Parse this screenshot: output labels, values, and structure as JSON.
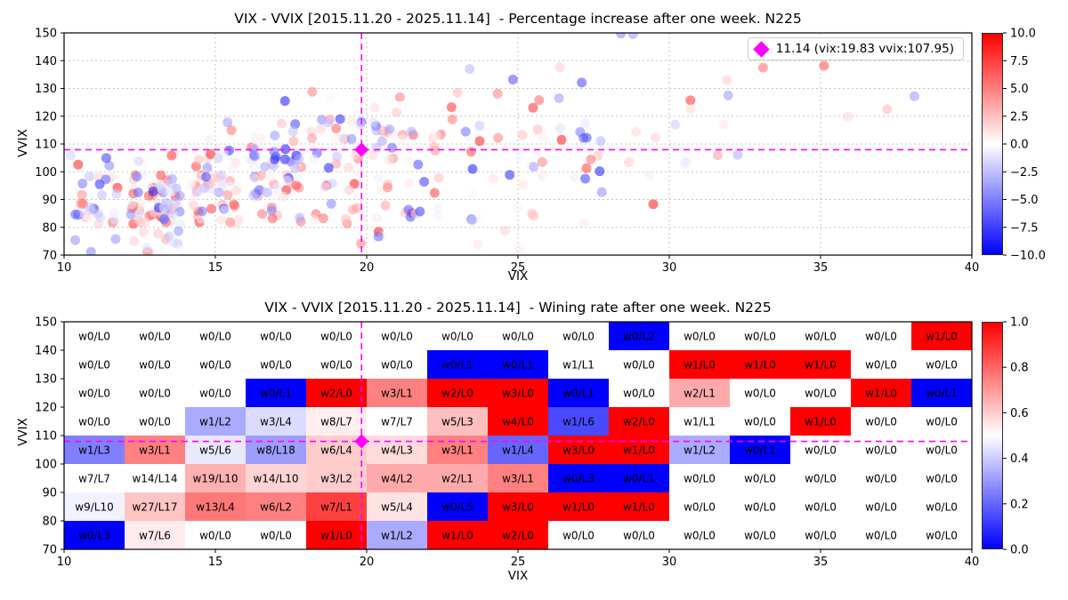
{
  "figure": {
    "background": "#ffffff",
    "accent_magenta": "#ff00ff",
    "grid_color": "#c3c3c3",
    "spine_color": "#000000"
  },
  "top_chart": {
    "title": "VIX - VVIX [2015.11.20 - 2025.11.14]  - Percentage increase after one week. N225",
    "xlabel": "VIX",
    "ylabel": "VVIX",
    "legend": {
      "label": "11.14 (vix:19.83 vvix:107.95)",
      "marker": "magenta-diamond"
    }
  },
  "bottom_chart": {
    "title": "VIX - VVIX [2015.11.20 - 2025.11.14]  - Wining rate after one week. N225",
    "xlabel": "VIX",
    "ylabel": "VVIX"
  },
  "chart_data": [
    {
      "type": "scatter",
      "title": "VIX - VVIX [2015.11.20 - 2025.11.14]  - Percentage increase after one week. N225",
      "xlabel": "VIX",
      "ylabel": "VVIX",
      "xlim": [
        10,
        40
      ],
      "ylim": [
        70,
        150
      ],
      "xticks": [
        10,
        15,
        20,
        25,
        30,
        35,
        40
      ],
      "yticks": [
        70,
        80,
        90,
        100,
        110,
        120,
        130,
        140,
        150
      ],
      "grid": true,
      "point_alpha": 0.55,
      "point_radius": 5.5,
      "colormap": "bwr",
      "colorbar": {
        "min": -10,
        "max": 10,
        "ticks": [
          "10.0",
          "7.5",
          "5.0",
          "2.5",
          "0.0",
          "−2.5",
          "−5.0",
          "−7.5",
          "−10.0"
        ]
      },
      "legend": {
        "label": "11.14 (vix:19.83 vvix:107.95)",
        "marker": "magenta-diamond",
        "position": "upper right"
      },
      "crosshair": {
        "vix": 19.83,
        "vvix": 107.95,
        "style": "magenta dashed",
        "marker": "magenta-diamond"
      },
      "density_note": "point counts per 2x10 (VIX x VVIX) bin equal w+L of the winning-rate table below; color sign follows w (red, positive %) vs L (blue, negative %)",
      "highlight_points": [
        [
          17.3,
          125.5,
          -9
        ],
        [
          28.4,
          149.8,
          -5
        ],
        [
          28.8,
          149.6,
          -4
        ],
        [
          23.4,
          137.0,
          -3
        ],
        [
          25.7,
          125.8,
          6
        ],
        [
          33.1,
          137.5,
          6
        ],
        [
          31.9,
          133.0,
          2
        ],
        [
          31.95,
          127.5,
          -4
        ],
        [
          30.7,
          125.7,
          8
        ],
        [
          30.7,
          122.5,
          1.5
        ],
        [
          38.0,
          146.0,
          2
        ],
        [
          38.1,
          127.2,
          -4
        ],
        [
          37.2,
          122.5,
          3
        ],
        [
          35.9,
          119.9,
          1.5
        ],
        [
          30.2,
          117.0,
          -2
        ],
        [
          28.9,
          114.4,
          1.5
        ],
        [
          23.5,
          101.0,
          -9
        ],
        [
          21.7,
          102.6,
          -7
        ],
        [
          21.9,
          96.4,
          -8
        ],
        [
          27.7,
          100.2,
          -9
        ],
        [
          13.2,
          83.8,
          9
        ],
        [
          16.2,
          108.8,
          7
        ],
        [
          20.5,
          114.8,
          6
        ],
        [
          20.7,
          114.3,
          5
        ],
        [
          25.8,
          103.5,
          5
        ],
        [
          31.6,
          106.0,
          4
        ],
        [
          17.0,
          105.5,
          -8
        ],
        [
          17.3,
          104.5,
          -9
        ],
        [
          17.5,
          103.6,
          -6
        ],
        [
          16.3,
          98.2,
          -6
        ],
        [
          15.4,
          117.8,
          -4
        ],
        [
          23.0,
          128.5,
          3
        ]
      ]
    },
    {
      "type": "heatmap",
      "title": "VIX - VVIX [2015.11.20 - 2025.11.14]  - Wining rate after one week. N225",
      "xlabel": "VIX",
      "ylabel": "VVIX",
      "xlim": [
        10,
        40
      ],
      "ylim": [
        70,
        150
      ],
      "xticks": [
        10,
        15,
        20,
        25,
        30,
        35,
        40
      ],
      "yticks": [
        70,
        80,
        90,
        100,
        110,
        120,
        130,
        140,
        150
      ],
      "cell_width_vix": 2,
      "cell_height_vvix": 10,
      "colormap": "bwr",
      "cell_value_rule": "color = wins/(wins+losses), white when 0/0",
      "colorbar": {
        "min": 0,
        "max": 1,
        "ticks": [
          "1.0",
          "0.8",
          "0.6",
          "0.4",
          "0.2",
          "0.0"
        ]
      },
      "crosshair": {
        "vix": 19.83,
        "vvix": 107.95,
        "style": "magenta dashed",
        "marker": "magenta-diamond"
      },
      "rows_top_to_bottom_vvix": [
        150,
        140,
        130,
        120,
        110,
        100,
        90,
        80,
        70
      ],
      "rows": [
        [
          "w0/L0",
          "w0/L0",
          "w0/L0",
          "w0/L0",
          "w0/L0",
          "w0/L0",
          "w0/L0",
          "w0/L0",
          "w0/L0",
          "w0/L2",
          "w0/L0",
          "w0/L0",
          "w0/L0",
          "w0/L0",
          "w1/L0"
        ],
        [
          "w0/L0",
          "w0/L0",
          "w0/L0",
          "w0/L0",
          "w0/L0",
          "w0/L0",
          "w0/L1",
          "w0/L1",
          "w1/L1",
          "w0/L0",
          "w1/L0",
          "w1/L0",
          "w1/L0",
          "w0/L0",
          "w0/L0"
        ],
        [
          "w0/L0",
          "w0/L0",
          "w0/L0",
          "w0/L1",
          "w2/L0",
          "w3/L1",
          "w2/L0",
          "w3/L0",
          "w0/L1",
          "w0/L0",
          "w2/L1",
          "w0/L0",
          "w0/L0",
          "w1/L0",
          "w0/L1"
        ],
        [
          "w0/L0",
          "w0/L0",
          "w1/L2",
          "w3/L4",
          "w8/L7",
          "w7/L7",
          "w5/L3",
          "w4/L0",
          "w1/L6",
          "w2/L0",
          "w1/L1",
          "w0/L0",
          "w1/L0",
          "w0/L0",
          "w0/L0"
        ],
        [
          "w1/L3",
          "w3/L1",
          "w5/L6",
          "w8/L18",
          "w6/L4",
          "w4/L3",
          "w3/L1",
          "w1/L4",
          "w3/L0",
          "w1/L0",
          "w1/L2",
          "w0/L1",
          "w0/L0",
          "w0/L0",
          "w0/L0"
        ],
        [
          "w7/L7",
          "w14/L14",
          "w19/L10",
          "w14/L10",
          "w3/L2",
          "w4/L2",
          "w2/L1",
          "w3/L1",
          "w0/L3",
          "w0/L1",
          "w0/L0",
          "w0/L0",
          "w0/L0",
          "w0/L0",
          "w0/L0"
        ],
        [
          "w9/L10",
          "w27/L17",
          "w13/L4",
          "w6/L2",
          "w7/L1",
          "w5/L4",
          "w0/L5",
          "w3/L0",
          "w1/L0",
          "w1/L0",
          "w0/L0",
          "w0/L0",
          "w0/L0",
          "w0/L0",
          "w0/L0"
        ],
        [
          "w0/L3",
          "w7/L6",
          "w0/L0",
          "w0/L0",
          "w1/L0",
          "w1/L2",
          "w1/L0",
          "w2/L0",
          "w0/L0",
          "w0/L0",
          "w0/L0",
          "w0/L0",
          "w0/L0",
          "w0/L0",
          "w0/L0"
        ]
      ]
    }
  ]
}
